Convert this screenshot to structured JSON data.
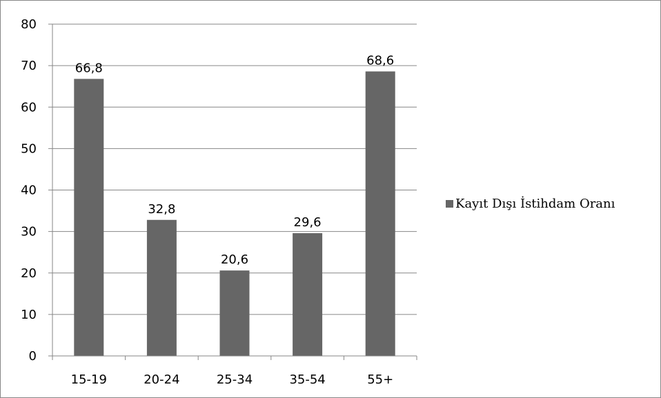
{
  "chart_data": {
    "type": "bar",
    "categories": [
      "15-19",
      "20-24",
      "25-34",
      "35-54",
      "55+"
    ],
    "series": [
      {
        "name": "Kayıt Dışı İstihdam Oranı",
        "values": [
          66.8,
          32.8,
          20.6,
          29.6,
          68.6
        ],
        "value_labels": [
          "66,8",
          "32,8",
          "20,6",
          "29,6",
          "68,6"
        ],
        "color": "#666666"
      }
    ],
    "ylim": [
      0,
      80
    ],
    "y_ticks": [
      "0",
      "10",
      "20",
      "30",
      "40",
      "50",
      "60",
      "70",
      "80"
    ],
    "grid": true,
    "legend_position": "right",
    "title": "",
    "xlabel": "",
    "ylabel": ""
  }
}
